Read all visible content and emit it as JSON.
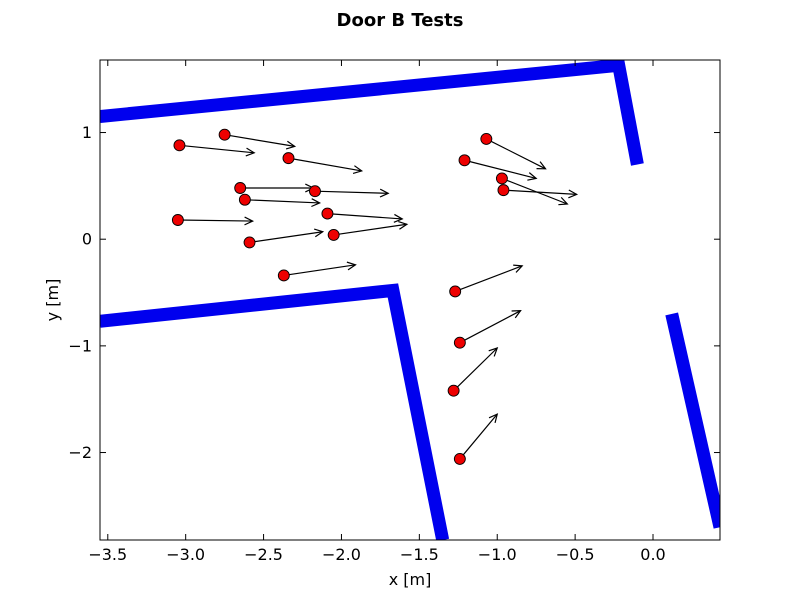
{
  "chart_data": {
    "type": "scatter",
    "title": "Door B Tests",
    "xlabel": "x [m]",
    "ylabel": "y [m]",
    "xlim": [
      -3.55,
      0.43
    ],
    "ylim": [
      -2.82,
      1.68
    ],
    "xticks": [
      -3.5,
      -3.0,
      -2.5,
      -2.0,
      -1.5,
      -1.0,
      -0.5,
      0.0
    ],
    "xtick_labels": [
      "−3.5",
      "−3.0",
      "−2.5",
      "−2.0",
      "−1.5",
      "−1.0",
      "−0.5",
      "0.0"
    ],
    "yticks": [
      1,
      0,
      -1,
      -2
    ],
    "ytick_labels": [
      "1",
      "0",
      "−1",
      "−2"
    ],
    "grid": false,
    "wall_color": "#0000ee",
    "marker_color": "#ee0000",
    "walls": [
      {
        "points": [
          [
            -3.55,
            1.15
          ],
          [
            -0.22,
            1.63
          ],
          [
            -0.1,
            0.7
          ]
        ]
      },
      {
        "points": [
          [
            -3.55,
            -0.77
          ],
          [
            -1.67,
            -0.48
          ],
          [
            -1.35,
            -2.82
          ]
        ]
      },
      {
        "points": [
          [
            0.12,
            -0.7
          ],
          [
            0.43,
            -2.7
          ]
        ]
      }
    ],
    "points": [
      {
        "x": -3.04,
        "y": 0.88,
        "dx": 0.48,
        "dy": -0.07
      },
      {
        "x": -2.75,
        "y": 0.98,
        "dx": 0.45,
        "dy": -0.11
      },
      {
        "x": -2.34,
        "y": 0.76,
        "dx": 0.47,
        "dy": -0.12
      },
      {
        "x": -2.65,
        "y": 0.48,
        "dx": 0.47,
        "dy": 0.0
      },
      {
        "x": -2.17,
        "y": 0.45,
        "dx": 0.47,
        "dy": -0.02
      },
      {
        "x": -2.62,
        "y": 0.37,
        "dx": 0.48,
        "dy": -0.03
      },
      {
        "x": -2.09,
        "y": 0.24,
        "dx": 0.48,
        "dy": -0.05
      },
      {
        "x": -3.05,
        "y": 0.18,
        "dx": 0.48,
        "dy": -0.01
      },
      {
        "x": -2.59,
        "y": -0.03,
        "dx": 0.47,
        "dy": 0.1
      },
      {
        "x": -2.05,
        "y": 0.04,
        "dx": 0.47,
        "dy": 0.1
      },
      {
        "x": -2.37,
        "y": -0.34,
        "dx": 0.46,
        "dy": 0.1
      },
      {
        "x": -1.07,
        "y": 0.94,
        "dx": 0.38,
        "dy": -0.28
      },
      {
        "x": -1.21,
        "y": 0.74,
        "dx": 0.46,
        "dy": -0.17
      },
      {
        "x": -0.97,
        "y": 0.57,
        "dx": 0.42,
        "dy": -0.24
      },
      {
        "x": -0.96,
        "y": 0.46,
        "dx": 0.47,
        "dy": -0.04
      },
      {
        "x": -1.27,
        "y": -0.49,
        "dx": 0.43,
        "dy": 0.24
      },
      {
        "x": -1.24,
        "y": -0.97,
        "dx": 0.39,
        "dy": 0.3
      },
      {
        "x": -1.28,
        "y": -1.42,
        "dx": 0.28,
        "dy": 0.4
      },
      {
        "x": -1.24,
        "y": -2.06,
        "dx": 0.24,
        "dy": 0.42
      }
    ]
  }
}
